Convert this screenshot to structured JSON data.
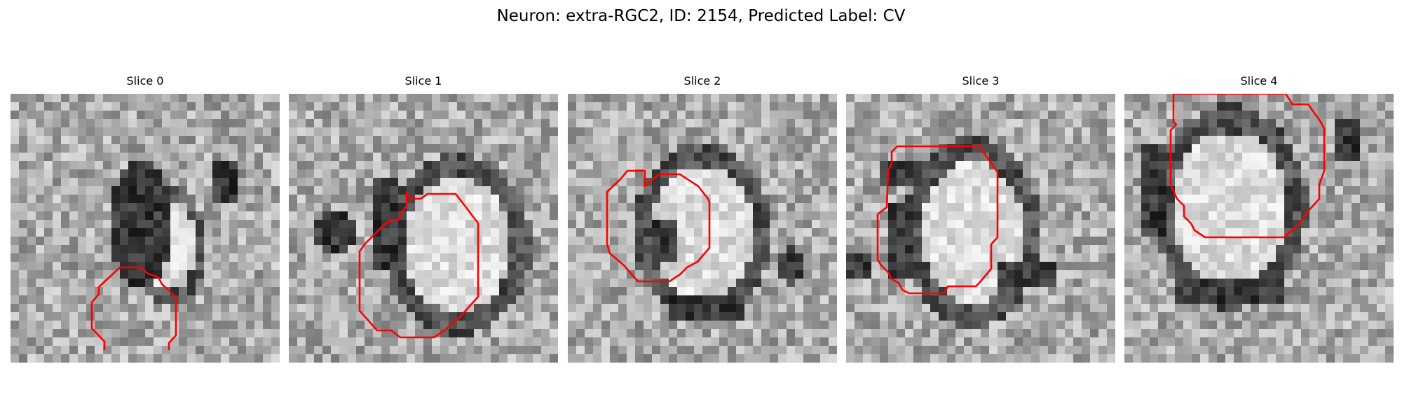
{
  "figure": {
    "title": "Neuron: extra-RGC2, ID: 2154, Predicted Label: CV"
  },
  "contour_color": "#ff0000",
  "panels": [
    {
      "label": "Slice 0"
    },
    {
      "label": "Slice 1"
    },
    {
      "label": "Slice 2"
    },
    {
      "label": "Slice 3"
    },
    {
      "label": "Slice 4"
    }
  ]
}
